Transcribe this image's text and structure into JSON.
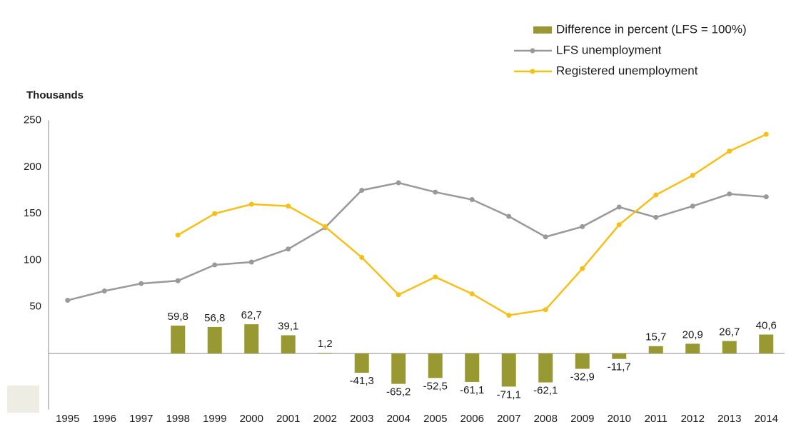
{
  "chart_data": {
    "type": "combo",
    "y_axis_title": "Thousands",
    "categories": [
      "1995",
      "1996",
      "1997",
      "1998",
      "1999",
      "2000",
      "2001",
      "2002",
      "2003",
      "2004",
      "2005",
      "2006",
      "2007",
      "2008",
      "2009",
      "2010",
      "2011",
      "2012",
      "2013",
      "2014"
    ],
    "ylim": [
      -60,
      250
    ],
    "yticks": [
      50,
      100,
      150,
      200,
      250
    ],
    "y2lim": [
      -120,
      500
    ],
    "series": [
      {
        "name": "Difference in percent (LFS = 100%)",
        "kind": "bar",
        "axis": "y2",
        "color": "#999933",
        "values": [
          null,
          null,
          null,
          59.8,
          56.8,
          62.7,
          39.1,
          1.2,
          -41.3,
          -65.2,
          -52.5,
          -61.1,
          -71.1,
          -62.1,
          -32.9,
          -11.7,
          15.7,
          20.9,
          26.7,
          40.6
        ],
        "value_labels": [
          null,
          null,
          null,
          "59,8",
          "56,8",
          "62,7",
          "39,1",
          "1,2",
          "-41,3",
          "-65,2",
          "-52,5",
          "-61,1",
          "-71,1",
          "-62,1",
          "-32,9",
          "-11,7",
          "15,7",
          "20,9",
          "26,7",
          "40,6"
        ]
      },
      {
        "name": "LFS unemployment",
        "kind": "line",
        "color": "#999999",
        "values": [
          57,
          67,
          75,
          78,
          95,
          98,
          112,
          135,
          175,
          183,
          173,
          165,
          147,
          125,
          136,
          157,
          146,
          158,
          171,
          168
        ]
      },
      {
        "name": "Registered unemployment",
        "kind": "line",
        "color": "#f5c018",
        "values": [
          null,
          null,
          null,
          127,
          150,
          160,
          158,
          136,
          103,
          63,
          82,
          64,
          41,
          47,
          91,
          138,
          170,
          191,
          217,
          235
        ]
      }
    ]
  }
}
